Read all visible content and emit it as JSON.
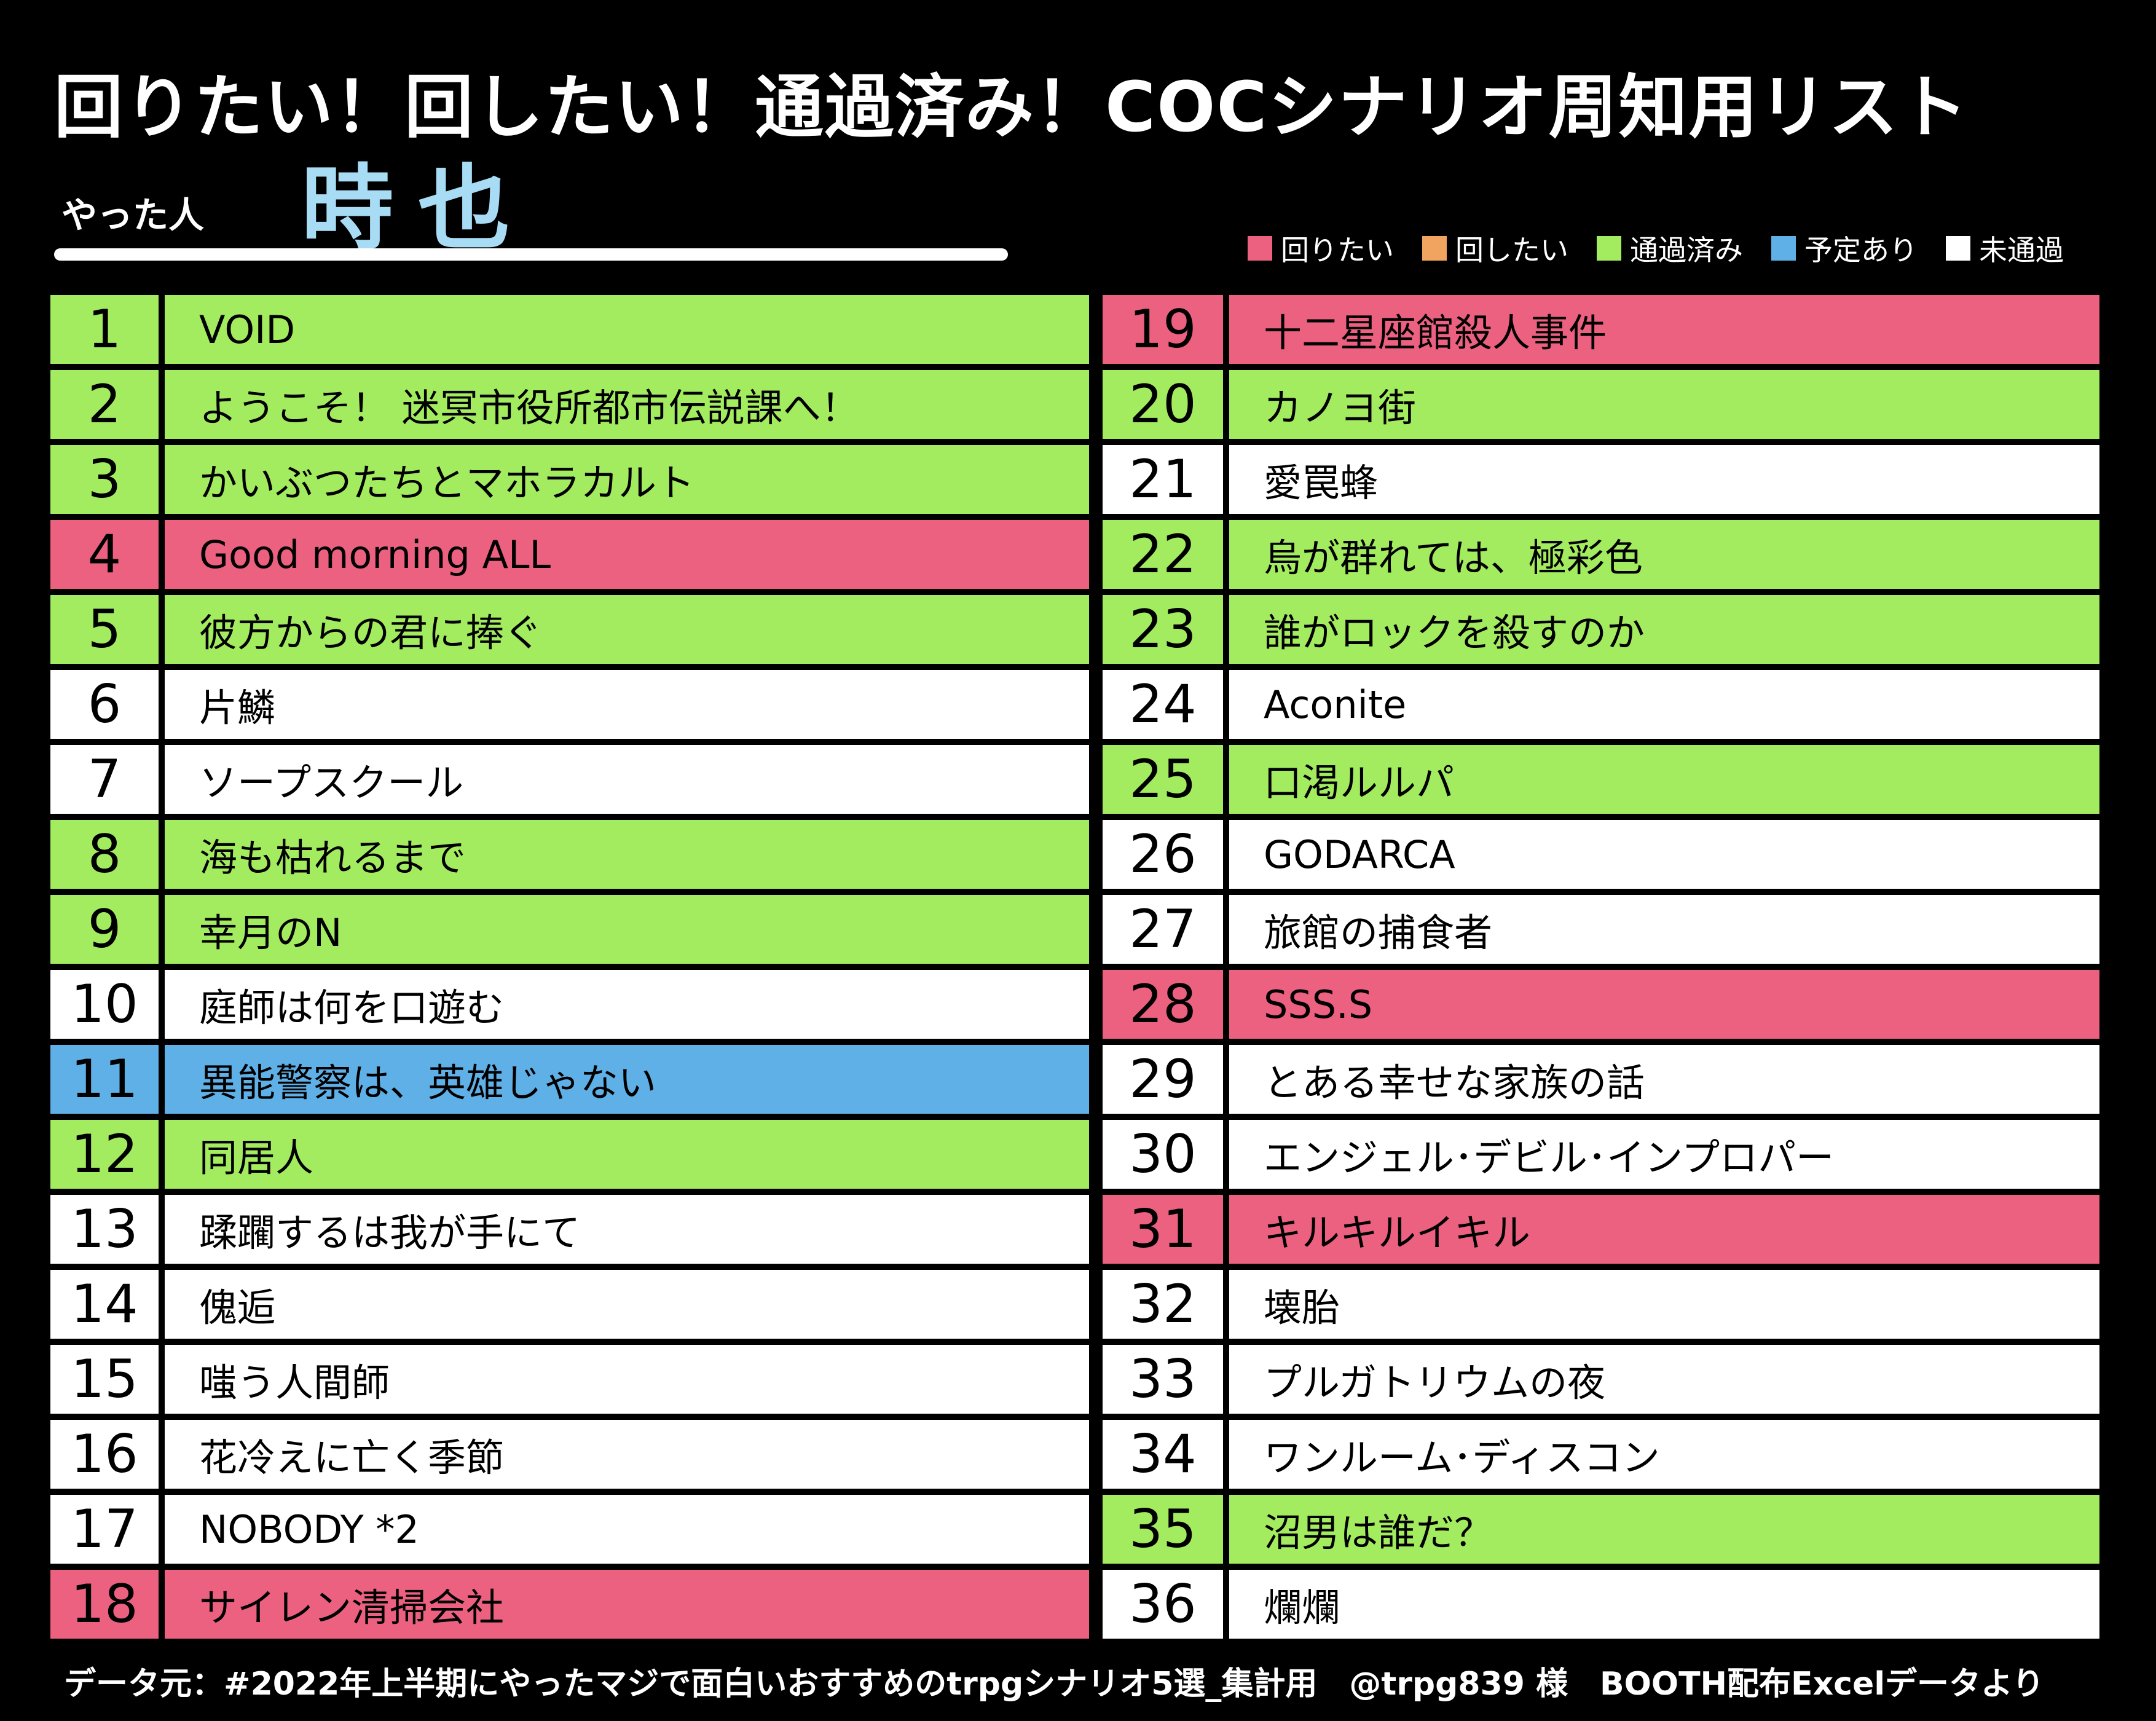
{
  "title": "回りたい！回したい！通過済み！COCシナリオ周知用リスト",
  "player": {
    "label": "やった人",
    "name": "時也"
  },
  "legend": [
    {
      "key": "want_play",
      "label": "回りたい",
      "color": "#ec6080"
    },
    {
      "key": "want_gm",
      "label": "回したい",
      "color": "#f0a460"
    },
    {
      "key": "done",
      "label": "通過済み",
      "color": "#a3ec60"
    },
    {
      "key": "planned",
      "label": "予定あり",
      "color": "#60b0e8"
    },
    {
      "key": "none",
      "label": "未通過",
      "color": "#ffffff"
    }
  ],
  "rows": [
    {
      "no": "1",
      "name": "VOID",
      "status": "done"
    },
    {
      "no": "2",
      "name": "ようこそ！ 迷冥市役所都市伝説課へ！",
      "status": "done"
    },
    {
      "no": "3",
      "name": "かいぶつたちとマホラカルト",
      "status": "done"
    },
    {
      "no": "4",
      "name": "Good morning ALL",
      "status": "want_play"
    },
    {
      "no": "5",
      "name": "彼方からの君に捧ぐ",
      "status": "done"
    },
    {
      "no": "6",
      "name": "片鱗",
      "status": "none"
    },
    {
      "no": "7",
      "name": "ソープスクール",
      "status": "none"
    },
    {
      "no": "8",
      "name": "海も枯れるまで",
      "status": "done"
    },
    {
      "no": "9",
      "name": "幸月のN",
      "status": "done"
    },
    {
      "no": "10",
      "name": "庭師は何を口遊む",
      "status": "none"
    },
    {
      "no": "11",
      "name": "異能警察は、英雄じゃない",
      "status": "planned"
    },
    {
      "no": "12",
      "name": "同居人",
      "status": "done"
    },
    {
      "no": "13",
      "name": "蹂躙するは我が手にて",
      "status": "none"
    },
    {
      "no": "14",
      "name": "傀逅",
      "status": "none"
    },
    {
      "no": "15",
      "name": "嗤う人間師",
      "status": "none"
    },
    {
      "no": "16",
      "name": "花冷えに亡く季節",
      "status": "none"
    },
    {
      "no": "17",
      "name": "NOBODY *2",
      "status": "none"
    },
    {
      "no": "18",
      "name": "サイレン清掃会社",
      "status": "want_play"
    },
    {
      "no": "19",
      "name": "十二星座館殺人事件",
      "status": "want_play"
    },
    {
      "no": "20",
      "name": "カノヨ街",
      "status": "done"
    },
    {
      "no": "21",
      "name": "愛罠蜂",
      "status": "none"
    },
    {
      "no": "22",
      "name": "烏が群れては、極彩色",
      "status": "done"
    },
    {
      "no": "23",
      "name": "誰がロックを殺すのか",
      "status": "done"
    },
    {
      "no": "24",
      "name": "Aconite",
      "status": "none"
    },
    {
      "no": "25",
      "name": "口渇ルルパ",
      "status": "done"
    },
    {
      "no": "26",
      "name": "GODARCA",
      "status": "none"
    },
    {
      "no": "27",
      "name": "旅館の捕食者",
      "status": "none"
    },
    {
      "no": "28",
      "name": "SSS.S",
      "status": "want_play"
    },
    {
      "no": "29",
      "name": "とある幸せな家族の話",
      "status": "none"
    },
    {
      "no": "30",
      "name": "エンジェル･デビル･インプロパー",
      "status": "none"
    },
    {
      "no": "31",
      "name": "キルキルイキル",
      "status": "want_play"
    },
    {
      "no": "32",
      "name": "壊胎",
      "status": "none"
    },
    {
      "no": "33",
      "name": "プルガトリウムの夜",
      "status": "none"
    },
    {
      "no": "34",
      "name": "ワンルーム･ディスコン",
      "status": "none"
    },
    {
      "no": "35",
      "name": "沼男は誰だ？",
      "status": "done"
    },
    {
      "no": "36",
      "name": "爛爛",
      "status": "none"
    }
  ],
  "footer": "データ元：#2022年上半期にやったマジで面白いおすすめのtrpgシナリオ5選_集計用　@trpg839 様　BOOTH配布Excelデータより"
}
